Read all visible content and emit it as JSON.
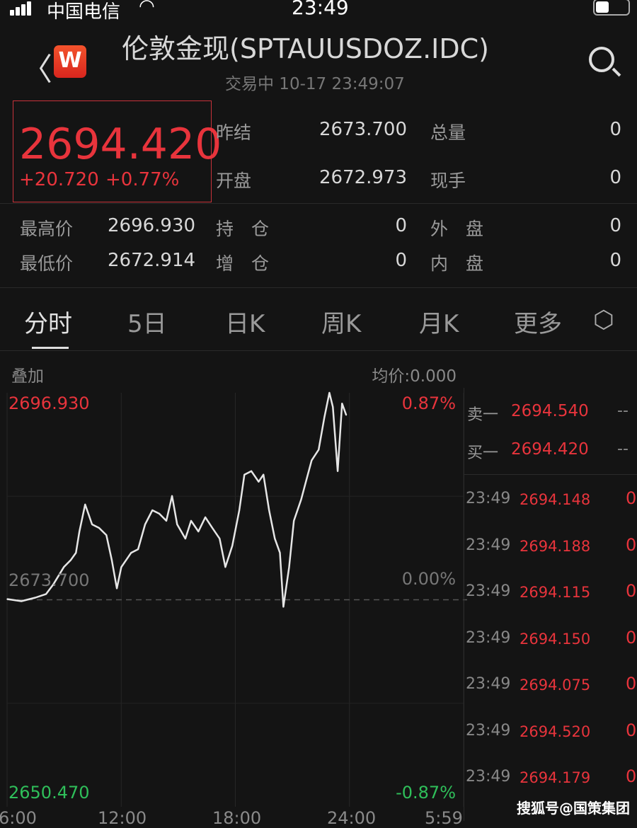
{
  "status_bar": {
    "carrier": "中国电信",
    "time": "23:49"
  },
  "header": {
    "title": "伦敦金现(SPTAUUSDOZ.IDC)",
    "subtitle": "交易中 10-17 23:49:07",
    "logo": "W"
  },
  "quote": {
    "price": "2694.420",
    "change": "+20.720",
    "change_pct": "+0.77%"
  },
  "stats": [
    {
      "label": "昨结",
      "value": "2673.700"
    },
    {
      "label": "总量",
      "value": "0"
    },
    {
      "label": "开盘",
      "value": "2672.973"
    },
    {
      "label": "现手",
      "value": "0"
    },
    {
      "label": "最高价",
      "value": "2696.930"
    },
    {
      "label": "持　仓",
      "value": "0"
    },
    {
      "label": "外　盘",
      "value": "0"
    },
    {
      "label": "最低价",
      "value": "2672.914"
    },
    {
      "label": "增　仓",
      "value": "0"
    },
    {
      "label": "内　盘",
      "value": "0"
    }
  ],
  "tabs": [
    {
      "label": "分时",
      "active": true
    },
    {
      "label": "5日"
    },
    {
      "label": "日K"
    },
    {
      "label": "周K"
    },
    {
      "label": "月K"
    },
    {
      "label": "更多"
    }
  ],
  "chart_header": {
    "overlay": "叠加",
    "avg": "均价:0.000"
  },
  "colors": {
    "up": "#e8343c",
    "down": "#2fbf5a",
    "line": "#e6e6e6",
    "background": "#141414"
  },
  "chart_data": {
    "type": "line",
    "ylim": [
      2650.47,
      2696.93
    ],
    "y_labels": {
      "top": "2696.930",
      "mid": "2673.700",
      "bottom": "2650.470"
    },
    "pct_labels": {
      "top": "0.87%",
      "mid": "0.00%",
      "bottom": "-0.87%"
    },
    "x_ticks": [
      "6:00",
      "12:00",
      "18:00",
      "24:00",
      "5:59"
    ],
    "baseline": 2673.7,
    "points": [
      [
        "06:00",
        2673.78
      ],
      [
        "06:45",
        2673.54
      ],
      [
        "07:29",
        2673.94
      ],
      [
        "08:03",
        2674.34
      ],
      [
        "08:25",
        2675.38
      ],
      [
        "08:59",
        2677.37
      ],
      [
        "09:21",
        2678.17
      ],
      [
        "09:37",
        2678.97
      ],
      [
        "09:48",
        2681.36
      ],
      [
        "10:06",
        2684.39
      ],
      [
        "10:28",
        2682.16
      ],
      [
        "10:50",
        2681.76
      ],
      [
        "11:13",
        2680.96
      ],
      [
        "11:30",
        2678.17
      ],
      [
        "11:46",
        2674.98
      ],
      [
        "12:00",
        2677.37
      ],
      [
        "12:31",
        2678.97
      ],
      [
        "12:53",
        2679.37
      ],
      [
        "13:15",
        2682.16
      ],
      [
        "13:38",
        2683.75
      ],
      [
        "14:00",
        2683.36
      ],
      [
        "14:22",
        2682.56
      ],
      [
        "14:40",
        2685.35
      ],
      [
        "14:56",
        2682.16
      ],
      [
        "15:22",
        2680.56
      ],
      [
        "15:40",
        2682.56
      ],
      [
        "16:03",
        2681.36
      ],
      [
        "16:25",
        2682.96
      ],
      [
        "16:47",
        2681.76
      ],
      [
        "17:10",
        2680.56
      ],
      [
        "17:28",
        2677.37
      ],
      [
        "17:50",
        2679.76
      ],
      [
        "18:12",
        2683.75
      ],
      [
        "18:28",
        2687.74
      ],
      [
        "18:50",
        2688.14
      ],
      [
        "19:13",
        2686.95
      ],
      [
        "19:28",
        2687.74
      ],
      [
        "19:46",
        2683.75
      ],
      [
        "20:04",
        2680.56
      ],
      [
        "20:20",
        2678.97
      ],
      [
        "20:31",
        2672.91
      ],
      [
        "20:49",
        2677.37
      ],
      [
        "21:04",
        2682.56
      ],
      [
        "21:27",
        2684.95
      ],
      [
        "21:42",
        2686.95
      ],
      [
        "22:00",
        2689.34
      ],
      [
        "22:22",
        2690.54
      ],
      [
        "22:40",
        2694.13
      ],
      [
        "22:56",
        2696.93
      ],
      [
        "23:07",
        2695.33
      ],
      [
        "23:22",
        2688.14
      ],
      [
        "23:36",
        2695.72
      ],
      [
        "23:49",
        2694.42
      ]
    ]
  },
  "order_book": [
    {
      "label": "卖一",
      "price": "2694.540",
      "vol": "--"
    },
    {
      "label": "买一",
      "price": "2694.420",
      "vol": "--"
    }
  ],
  "ticks": [
    {
      "time": "23:49",
      "price": "2694.148",
      "vol": "0"
    },
    {
      "time": "23:49",
      "price": "2694.188",
      "vol": "0"
    },
    {
      "time": "23:49",
      "price": "2694.115",
      "vol": "0"
    },
    {
      "time": "23:49",
      "price": "2694.150",
      "vol": "0"
    },
    {
      "time": "23:49",
      "price": "2694.075",
      "vol": "0"
    },
    {
      "time": "23:49",
      "price": "2694.520",
      "vol": "0"
    },
    {
      "time": "23:49",
      "price": "2694.179",
      "vol": "0"
    }
  ],
  "watermark": "搜狐号@国策集团"
}
